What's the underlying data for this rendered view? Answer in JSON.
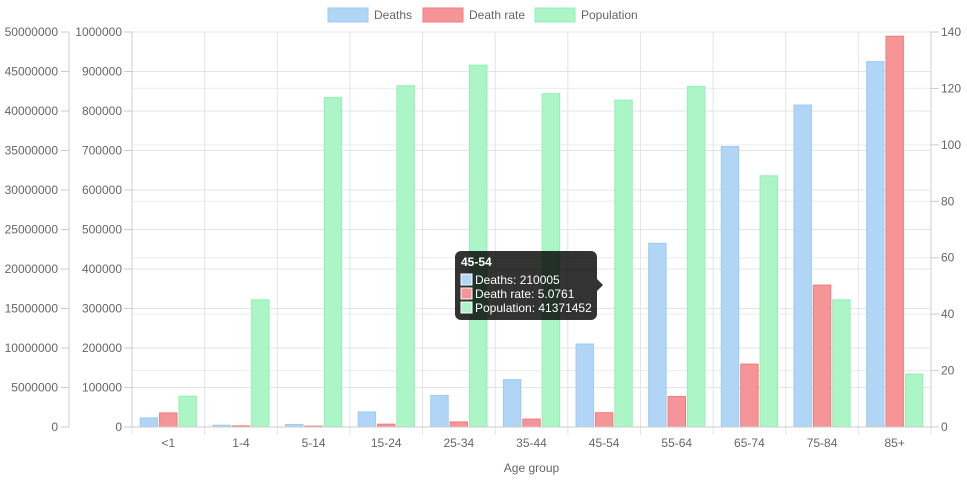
{
  "chart_data": {
    "type": "bar",
    "xlabel": "Age group",
    "categories": [
      "<1",
      "1-4",
      "5-14",
      "15-24",
      "25-34",
      "35-44",
      "45-54",
      "55-64",
      "65-74",
      "75-84",
      "85+"
    ],
    "series": [
      {
        "name": "Deaths",
        "axis": "y_left_inner",
        "color": "#b0d5f5",
        "border": "#9ccbf2",
        "values": [
          23000,
          4500,
          6500,
          38000,
          80000,
          120000,
          210005,
          465000,
          710000,
          815000,
          925000
        ]
      },
      {
        "name": "Death rate",
        "axis": "y_right",
        "color": "#f59597",
        "border": "#f27a7d",
        "values": [
          5.0,
          0.4,
          0.3,
          1.0,
          1.8,
          2.8,
          5.0761,
          10.8,
          22.3,
          50.3,
          138.5
        ]
      },
      {
        "name": "Population",
        "axis": "y_left_outer",
        "color": "#abf5c6",
        "border": "#93f0b5",
        "values": [
          3900000,
          16100000,
          41700000,
          43200000,
          45800000,
          42200000,
          41371452,
          43100000,
          31800000,
          16100000,
          6700000
        ]
      }
    ],
    "y_left_outer": {
      "min": 0,
      "max": 50000000,
      "ticks": [
        "0",
        "5000000",
        "10000000",
        "15000000",
        "20000000",
        "25000000",
        "30000000",
        "35000000",
        "40000000",
        "45000000",
        "50000000"
      ]
    },
    "y_left_inner": {
      "min": 0,
      "max": 1000000,
      "ticks": [
        "0",
        "100000",
        "200000",
        "300000",
        "400000",
        "500000",
        "600000",
        "700000",
        "800000",
        "900000",
        "1000000"
      ]
    },
    "y_right": {
      "min": 0,
      "max": 140,
      "ticks": [
        "0",
        "20",
        "40",
        "60",
        "80",
        "100",
        "120",
        "140"
      ]
    },
    "legend_position": "top",
    "grid": true,
    "tooltip": {
      "category_index": 6,
      "title": "45-54",
      "lines": [
        "Deaths: 210005",
        "Death rate: 5.0761",
        "Population: 41371452"
      ]
    }
  }
}
